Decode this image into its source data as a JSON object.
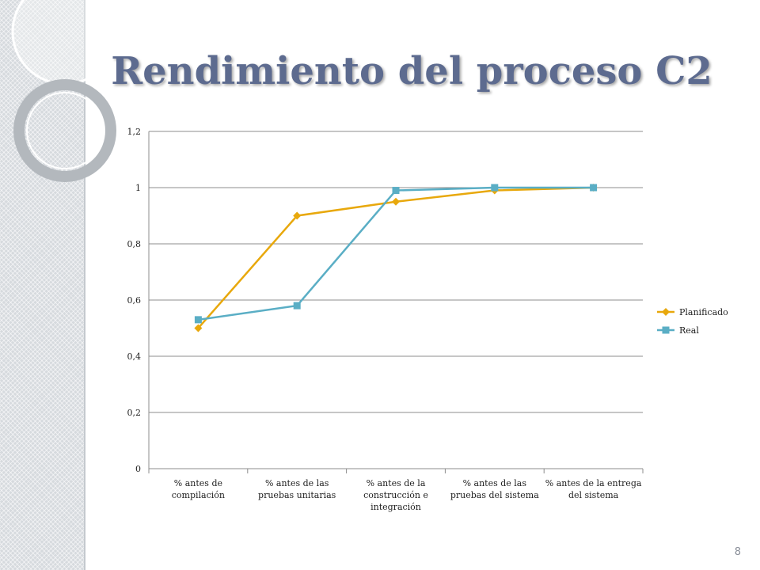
{
  "slide": {
    "title": "Rendimiento del proceso C2",
    "page_number": "8"
  },
  "colors": {
    "planificado": "#e8a80c",
    "real": "#5aaec5",
    "grid": "#8c8c8c",
    "title": "#5d6b8f"
  },
  "chart_data": {
    "type": "line",
    "categories": [
      [
        "% antes de",
        "compilación"
      ],
      [
        "% antes de las",
        "pruebas unitarias"
      ],
      [
        "% antes de la",
        "construcción e",
        "integración"
      ],
      [
        "% antes de las",
        "pruebas del sistema"
      ],
      [
        "% antes de la entrega",
        "del sistema"
      ]
    ],
    "series": [
      {
        "name": "Planificado",
        "values": [
          0.5,
          0.9,
          0.95,
          0.99,
          1.0
        ],
        "marker": "diamond"
      },
      {
        "name": "Real",
        "values": [
          0.53,
          0.58,
          0.99,
          1.0,
          1.0
        ],
        "marker": "square"
      }
    ],
    "ylim": [
      0,
      1.2
    ],
    "yticks": [
      0,
      0.2,
      0.4,
      0.6,
      0.8,
      1,
      1.2
    ],
    "ytick_labels": [
      "0",
      "0,2",
      "0,4",
      "0,6",
      "0,8",
      "1",
      "1,2"
    ],
    "grid": true,
    "legend": "right"
  }
}
